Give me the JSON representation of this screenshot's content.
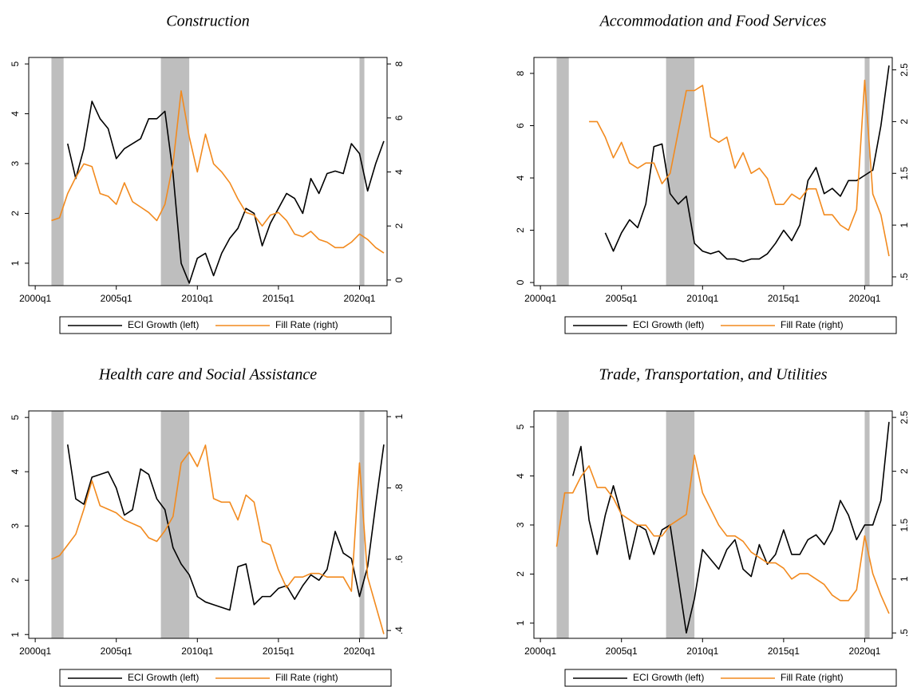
{
  "chart_data": [
    {
      "type": "line",
      "title": "Construction",
      "x": [
        2001,
        2001.5,
        2002,
        2002.5,
        2003,
        2003.5,
        2004,
        2004.5,
        2005,
        2005.5,
        2006,
        2006.5,
        2007,
        2007.5,
        2008,
        2008.5,
        2009,
        2009.5,
        2010,
        2010.5,
        2011,
        2011.5,
        2012,
        2012.5,
        2013,
        2013.5,
        2014,
        2014.5,
        2015,
        2015.5,
        2016,
        2016.5,
        2017,
        2017.5,
        2018,
        2018.5,
        2019,
        2019.5,
        2020,
        2020.5,
        2021,
        2021.5
      ],
      "series": [
        {
          "name": "ECI Growth (left)",
          "color": "#000000",
          "values": [
            null,
            null,
            3.4,
            2.7,
            3.3,
            4.25,
            3.9,
            3.7,
            3.1,
            3.3,
            3.4,
            3.5,
            3.9,
            3.9,
            4.05,
            2.8,
            1.0,
            0.6,
            1.1,
            1.2,
            0.75,
            1.2,
            1.5,
            1.7,
            2.1,
            2.0,
            1.35,
            1.8,
            2.1,
            2.4,
            2.3,
            2.0,
            2.7,
            2.4,
            2.8,
            2.85,
            2.8,
            3.4,
            3.2,
            2.45,
            3.0,
            3.45
          ]
        },
        {
          "name": "Fill Rate (right)",
          "color": "#f28a1e",
          "axis": "y2",
          "values": [
            2.2,
            2.3,
            3.2,
            3.8,
            4.3,
            4.2,
            3.2,
            3.1,
            2.8,
            3.6,
            2.9,
            2.7,
            2.5,
            2.2,
            2.8,
            4.3,
            7.0,
            5.3,
            4.0,
            5.4,
            4.3,
            4.0,
            3.6,
            3.0,
            2.5,
            2.4,
            2.0,
            2.4,
            2.5,
            2.2,
            1.7,
            1.6,
            1.8,
            1.5,
            1.4,
            1.2,
            1.2,
            1.4,
            1.7,
            1.5,
            1.2,
            1.0
          ]
        }
      ],
      "xlim": [
        1999.6,
        2021.7
      ],
      "xticks": [
        {
          "value": 2000,
          "label": "2000q1"
        },
        {
          "value": 2005,
          "label": "2005q1"
        },
        {
          "value": 2010,
          "label": "2010q1"
        },
        {
          "value": 2015,
          "label": "2015q1"
        },
        {
          "value": 2020,
          "label": "2020q1"
        }
      ],
      "ylim": [
        0.55,
        5.13
      ],
      "yticks": [
        1,
        2,
        3,
        4,
        5
      ],
      "y2lim": [
        -0.21,
        8.24
      ],
      "y2ticks": [
        0,
        2,
        4,
        6,
        8
      ],
      "shaded_periods": [
        [
          2001.0,
          2001.75
        ],
        [
          2007.75,
          2009.5
        ],
        [
          2020.0,
          2020.3
        ]
      ],
      "shade_color": "#bebebe"
    },
    {
      "type": "line",
      "title": "Accommodation and Food Services",
      "x": [
        2001,
        2001.5,
        2002,
        2002.5,
        2003,
        2003.5,
        2004,
        2004.5,
        2005,
        2005.5,
        2006,
        2006.5,
        2007,
        2007.5,
        2008,
        2008.5,
        2009,
        2009.5,
        2010,
        2010.5,
        2011,
        2011.5,
        2012,
        2012.5,
        2013,
        2013.5,
        2014,
        2014.5,
        2015,
        2015.5,
        2016,
        2016.5,
        2017,
        2017.5,
        2018,
        2018.5,
        2019,
        2019.5,
        2020,
        2020.5,
        2021,
        2021.5
      ],
      "series": [
        {
          "name": "ECI Growth (left)",
          "color": "#000000",
          "values": [
            null,
            null,
            null,
            null,
            null,
            null,
            1.9,
            1.2,
            1.9,
            2.4,
            2.1,
            3.0,
            5.2,
            5.3,
            3.4,
            3.0,
            3.3,
            1.5,
            1.2,
            1.1,
            1.2,
            0.9,
            0.9,
            0.8,
            0.9,
            0.9,
            1.1,
            1.5,
            2.0,
            1.6,
            2.2,
            3.9,
            4.4,
            3.4,
            3.6,
            3.3,
            3.9,
            3.9,
            4.1,
            4.3,
            6.0,
            8.3
          ]
        },
        {
          "name": "Fill Rate (right)",
          "color": "#f28a1e",
          "axis": "y2",
          "values": [
            null,
            null,
            null,
            null,
            2.0,
            2.0,
            1.85,
            1.65,
            1.8,
            1.6,
            1.55,
            1.6,
            1.6,
            1.4,
            1.5,
            1.9,
            2.3,
            2.3,
            2.35,
            1.85,
            1.8,
            1.85,
            1.55,
            1.7,
            1.5,
            1.55,
            1.45,
            1.2,
            1.2,
            1.3,
            1.25,
            1.35,
            1.35,
            1.1,
            1.1,
            1.0,
            0.95,
            1.15,
            2.4,
            1.3,
            1.1,
            0.7
          ]
        }
      ],
      "xlim": [
        1999.6,
        2021.7
      ],
      "xticks": [
        {
          "value": 2000,
          "label": "2000q1"
        },
        {
          "value": 2005,
          "label": "2005q1"
        },
        {
          "value": 2010,
          "label": "2010q1"
        },
        {
          "value": 2015,
          "label": "2015q1"
        },
        {
          "value": 2020,
          "label": "2020q1"
        }
      ],
      "ylim": [
        -0.12,
        8.61
      ],
      "yticks": [
        0,
        2,
        4,
        6,
        8
      ],
      "y2lim": [
        0.415,
        2.62
      ],
      "y2ticks": [
        {
          "value": 0.5,
          "label": ".5"
        },
        1,
        1.5,
        2,
        2.5
      ],
      "shaded_periods": [
        [
          2001.0,
          2001.75
        ],
        [
          2007.75,
          2009.5
        ],
        [
          2020.0,
          2020.3
        ]
      ],
      "shade_color": "#bebebe"
    },
    {
      "type": "line",
      "title": "Health care and Social Assistance",
      "x": [
        2001,
        2001.5,
        2002,
        2002.5,
        2003,
        2003.5,
        2004,
        2004.5,
        2005,
        2005.5,
        2006,
        2006.5,
        2007,
        2007.5,
        2008,
        2008.5,
        2009,
        2009.5,
        2010,
        2010.5,
        2011,
        2011.5,
        2012,
        2012.5,
        2013,
        2013.5,
        2014,
        2014.5,
        2015,
        2015.5,
        2016,
        2016.5,
        2017,
        2017.5,
        2018,
        2018.5,
        2019,
        2019.5,
        2020,
        2020.5,
        2021,
        2021.5
      ],
      "series": [
        {
          "name": "ECI Growth (left)",
          "color": "#000000",
          "values": [
            null,
            null,
            4.5,
            3.5,
            3.4,
            3.9,
            3.95,
            4.0,
            3.7,
            3.2,
            3.3,
            4.05,
            3.95,
            3.5,
            3.3,
            2.6,
            2.3,
            2.1,
            1.7,
            1.6,
            1.55,
            1.5,
            1.45,
            2.25,
            2.3,
            1.55,
            1.7,
            1.7,
            1.85,
            1.9,
            1.65,
            1.9,
            2.1,
            2.0,
            2.2,
            2.9,
            2.5,
            2.4,
            1.7,
            2.25,
            3.4,
            4.5
          ]
        },
        {
          "name": "Fill Rate (right)",
          "color": "#f28a1e",
          "axis": "y2",
          "values": [
            0.6,
            0.61,
            0.64,
            0.67,
            0.74,
            0.82,
            0.75,
            0.74,
            0.73,
            0.71,
            0.7,
            0.69,
            0.66,
            0.65,
            0.68,
            0.72,
            0.87,
            0.9,
            0.86,
            0.92,
            0.77,
            0.76,
            0.76,
            0.71,
            0.78,
            0.76,
            0.65,
            0.64,
            0.57,
            0.52,
            0.55,
            0.55,
            0.56,
            0.56,
            0.55,
            0.55,
            0.55,
            0.51,
            0.87,
            0.55,
            0.47,
            0.39
          ]
        }
      ],
      "xlim": [
        1999.6,
        2021.7
      ],
      "xticks": [
        {
          "value": 2000,
          "label": "2000q1"
        },
        {
          "value": 2005,
          "label": "2005q1"
        },
        {
          "value": 2010,
          "label": "2010q1"
        },
        {
          "value": 2015,
          "label": "2015q1"
        },
        {
          "value": 2020,
          "label": "2020q1"
        }
      ],
      "ylim": [
        0.93,
        5.12
      ],
      "yticks": [
        1,
        2,
        3,
        4,
        5
      ],
      "y2lim": [
        0.378,
        1.016
      ],
      "y2ticks": [
        {
          "value": 0.4,
          "label": ".4"
        },
        {
          "value": 0.6,
          "label": ".6"
        },
        {
          "value": 0.8,
          "label": ".8"
        },
        1
      ],
      "shaded_periods": [
        [
          2001.0,
          2001.75
        ],
        [
          2007.75,
          2009.5
        ],
        [
          2020.0,
          2020.3
        ]
      ],
      "shade_color": "#bebebe"
    },
    {
      "type": "line",
      "title": "Trade, Transportation, and Utilities",
      "x": [
        2001,
        2001.5,
        2002,
        2002.5,
        2003,
        2003.5,
        2004,
        2004.5,
        2005,
        2005.5,
        2006,
        2006.5,
        2007,
        2007.5,
        2008,
        2008.5,
        2009,
        2009.5,
        2010,
        2010.5,
        2011,
        2011.5,
        2012,
        2012.5,
        2013,
        2013.5,
        2014,
        2014.5,
        2015,
        2015.5,
        2016,
        2016.5,
        2017,
        2017.5,
        2018,
        2018.5,
        2019,
        2019.5,
        2020,
        2020.5,
        2021,
        2021.5
      ],
      "series": [
        {
          "name": "ECI Growth (left)",
          "color": "#000000",
          "values": [
            null,
            null,
            4.0,
            4.6,
            3.1,
            2.4,
            3.2,
            3.8,
            3.2,
            2.3,
            3.0,
            2.9,
            2.4,
            2.9,
            3.0,
            1.9,
            0.8,
            1.5,
            2.5,
            2.3,
            2.1,
            2.5,
            2.7,
            2.1,
            1.95,
            2.6,
            2.2,
            2.4,
            2.9,
            2.4,
            2.4,
            2.7,
            2.8,
            2.6,
            2.9,
            3.5,
            3.2,
            2.7,
            3.0,
            3.0,
            3.5,
            5.1
          ]
        },
        {
          "name": "Fill Rate (right)",
          "color": "#f28a1e",
          "axis": "y2",
          "values": [
            1.3,
            1.8,
            1.8,
            1.95,
            2.05,
            1.85,
            1.85,
            1.75,
            1.6,
            1.55,
            1.5,
            1.5,
            1.4,
            1.4,
            1.5,
            1.55,
            1.6,
            2.15,
            1.8,
            1.65,
            1.5,
            1.4,
            1.4,
            1.35,
            1.25,
            1.2,
            1.15,
            1.15,
            1.1,
            1.0,
            1.05,
            1.05,
            1.0,
            0.95,
            0.85,
            0.8,
            0.8,
            0.9,
            1.4,
            1.05,
            0.85,
            0.68
          ]
        }
      ],
      "xlim": [
        1999.6,
        2021.7
      ],
      "xticks": [
        {
          "value": 2000,
          "label": "2000q1"
        },
        {
          "value": 2005,
          "label": "2005q1"
        },
        {
          "value": 2010,
          "label": "2010q1"
        },
        {
          "value": 2015,
          "label": "2015q1"
        },
        {
          "value": 2020,
          "label": "2020q1"
        }
      ],
      "ylim": [
        0.69,
        5.325
      ],
      "yticks": [
        1,
        2,
        3,
        4,
        5
      ],
      "y2lim": [
        0.45,
        2.56
      ],
      "y2ticks": [
        {
          "value": 0.5,
          "label": ".5"
        },
        1,
        1.5,
        2,
        2.5
      ],
      "shaded_periods": [
        [
          2001.0,
          2001.75
        ],
        [
          2007.75,
          2009.5
        ],
        [
          2020.0,
          2020.3
        ]
      ],
      "shade_color": "#bebebe"
    }
  ]
}
